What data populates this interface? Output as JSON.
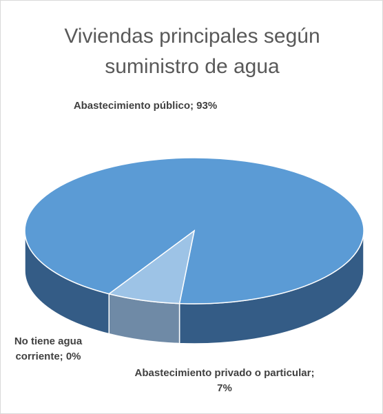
{
  "chart_data": {
    "type": "pie",
    "title": "Viviendas principales según suministro de agua",
    "categories": [
      "Abastecimiento público",
      "Abastecimiento privado o particular",
      "No tiene agua corriente"
    ],
    "values": [
      93,
      7,
      0
    ],
    "value_labels": [
      "Abastecimiento público; 93%",
      "Abastecimiento privado o particular; 7%",
      "No tiene agua corriente; 0%"
    ],
    "colors": [
      "#5b9bd5",
      "#9dc3e6",
      "#a5a5a5"
    ],
    "side_colors": [
      "#345c86",
      "#6f8aa6",
      "#7f7f7f"
    ]
  }
}
